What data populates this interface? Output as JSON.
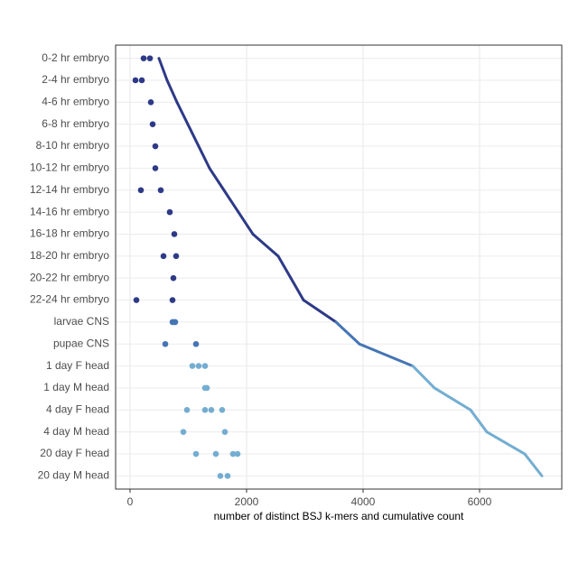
{
  "chart_data": {
    "type": "dot-cumulative",
    "xlabel": "number of distinct BSJ k-mers and cumulative count",
    "categories": [
      "0-2 hr embryo",
      "2-4 hr embryo",
      "4-6 hr embryo",
      "6-8 hr embryo",
      "8-10 hr embryo",
      "10-12 hr embryo",
      "12-14 hr embryo",
      "14-16 hr embryo",
      "16-18 hr embryo",
      "18-20 hr embryo",
      "20-22 hr embryo",
      "22-24 hr embryo",
      "larvae CNS",
      "pupae CNS",
      "1 day F head",
      "1 day M head",
      "4 day F head",
      "4 day M head",
      "20 day F head",
      "20 day M head"
    ],
    "colors": [
      "#2e3a87",
      "#2e3a87",
      "#2e3a87",
      "#2e3a87",
      "#2e3a87",
      "#2e3a87",
      "#2e3a87",
      "#2e3a87",
      "#2e3a87",
      "#2e3a87",
      "#2e3a87",
      "#2e3a87",
      "#4575b4",
      "#4575b4",
      "#74add1",
      "#74add1",
      "#74add1",
      "#74add1",
      "#74add1",
      "#74add1"
    ],
    "cumulative": [
      496,
      636,
      806,
      992,
      1178,
      1364,
      1612,
      1860,
      2109,
      2543,
      2760,
      2977,
      3535,
      3938,
      4853,
      5225,
      5845,
      6124,
      6775,
      7070
    ],
    "dots": {
      "categories": [
        "0-2 hr embryo",
        "0-2 hr embryo",
        "2-4 hr embryo",
        "2-4 hr embryo",
        "4-6 hr embryo",
        "6-8 hr embryo",
        "8-10 hr embryo",
        "10-12 hr embryo",
        "12-14 hr embryo",
        "12-14 hr embryo",
        "14-16 hr embryo",
        "16-18 hr embryo",
        "18-20 hr embryo",
        "18-20 hr embryo",
        "20-22 hr embryo",
        "22-24 hr embryo",
        "22-24 hr embryo",
        "larvae CNS",
        "larvae CNS",
        "larvae CNS",
        "pupae CNS",
        "pupae CNS",
        "1 day F head",
        "1 day F head",
        "1 day F head",
        "1 day M head",
        "1 day M head",
        "4 day F head",
        "4 day F head",
        "4 day F head",
        "4 day F head",
        "4 day M head",
        "4 day M head",
        "20 day F head",
        "20 day F head",
        "20 day F head",
        "20 day F head",
        "20 day M head",
        "20 day M head"
      ],
      "x": [
        233,
        341,
        93,
        202,
        357,
        388,
        434,
        434,
        186,
        527,
        682,
        760,
        574,
        791,
        744,
        109,
        729,
        729,
        760,
        775,
        605,
        1132,
        1070,
        1178,
        1287,
        1287,
        1318,
        977,
        1287,
        1395,
        1581,
        915,
        1628,
        1132,
        1473,
        1767,
        1845,
        1550,
        1674
      ]
    },
    "xlim": [
      -248,
      7411
    ],
    "xticks": [
      0,
      2000,
      4000,
      6000
    ],
    "grid": true
  }
}
